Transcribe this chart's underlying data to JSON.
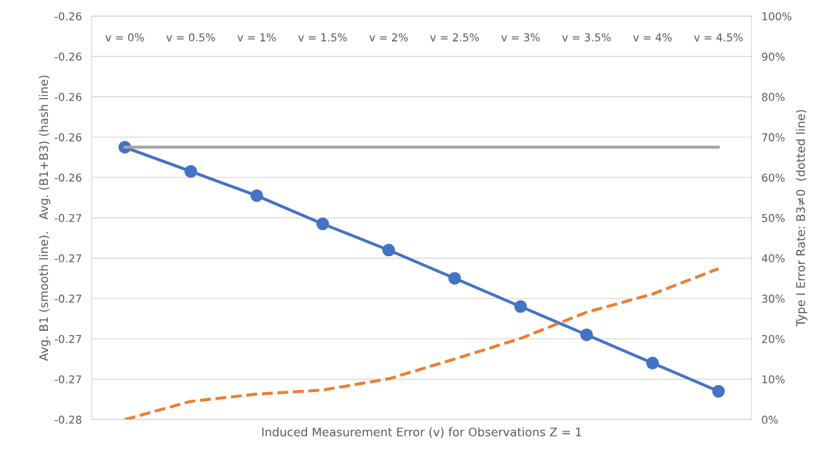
{
  "chart_data": {
    "type": "line",
    "categories": [
      "v = 0%",
      "v = 0.5%",
      "v = 1%",
      "v = 1.5%",
      "v = 2%",
      "v = 2.5%",
      "v = 3%",
      "v = 3.5%",
      "v = 4%",
      "v = 4.5%"
    ],
    "xlabel": "Induced Measurement Error (v) for Observations Z = 1",
    "ylabel": "Avg. B1 (smooth line).   Avg. (B1+B3) (hash line)",
    "y2label": "Type I Error Rate: B3≠0  (dotted line)",
    "series": [
      {
        "color": "#4472c4",
        "marker": "circle",
        "line_style": "solid",
        "values": [
          -0.2625,
          -0.2637,
          -0.2649,
          -0.2663,
          -0.2676,
          -0.269,
          -0.2704,
          -0.2718,
          -0.2732,
          -0.2746
        ]
      },
      {
        "color": "#a5a5a5",
        "marker": "none",
        "line_style": "solid",
        "values": [
          -0.2625,
          -0.2625,
          -0.2625,
          -0.2625,
          -0.2625,
          -0.2625,
          -0.2625,
          -0.2625,
          -0.2625,
          -0.2625
        ]
      },
      {
        "color": "#ed7d31",
        "marker": "none",
        "line_style": "dashed",
        "axis": "y2",
        "values": [
          0,
          4.5,
          6.3,
          7.3,
          10.1,
          15,
          20.1,
          26.6,
          31.1,
          37.4
        ]
      }
    ],
    "ylim": [
      -0.276,
      -0.256
    ],
    "yticks": [
      {
        "value": -0.276,
        "label": "-0.28"
      },
      {
        "value": -0.274,
        "label": "-0.27"
      },
      {
        "value": -0.272,
        "label": "-0.27"
      },
      {
        "value": -0.27,
        "label": "-0.27"
      },
      {
        "value": -0.268,
        "label": "-0.27"
      },
      {
        "value": -0.266,
        "label": "-0.27"
      },
      {
        "value": -0.264,
        "label": "-0.26"
      },
      {
        "value": -0.262,
        "label": "-0.26"
      },
      {
        "value": -0.26,
        "label": "-0.26"
      },
      {
        "value": -0.258,
        "label": "-0.26"
      },
      {
        "value": -0.256,
        "label": "-0.26"
      }
    ],
    "y2lim": [
      0,
      100
    ],
    "y2ticks": [
      {
        "value": 0,
        "label": "0%"
      },
      {
        "value": 10,
        "label": "10%"
      },
      {
        "value": 20,
        "label": "20%"
      },
      {
        "value": 30,
        "label": "30%"
      },
      {
        "value": 40,
        "label": "40%"
      },
      {
        "value": 50,
        "label": "50%"
      },
      {
        "value": 60,
        "label": "60%"
      },
      {
        "value": 70,
        "label": "70%"
      },
      {
        "value": 80,
        "label": "80%"
      },
      {
        "value": 90,
        "label": "90%"
      },
      {
        "value": 100,
        "label": "100%"
      }
    ],
    "grid": "y"
  }
}
